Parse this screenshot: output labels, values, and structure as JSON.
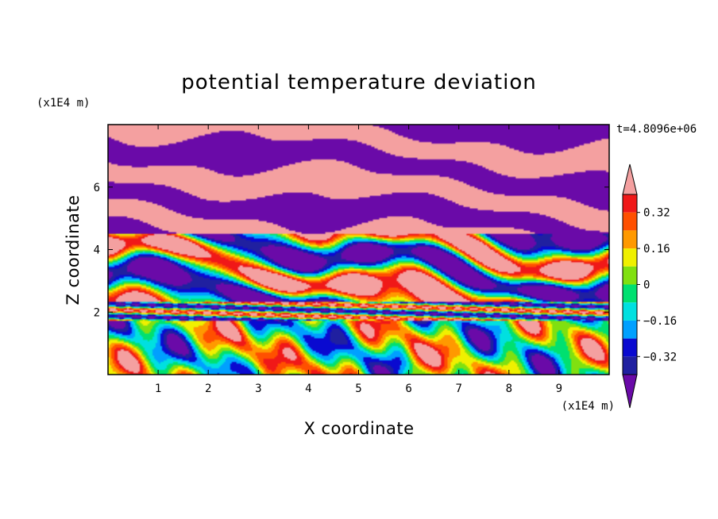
{
  "chart_data": {
    "type": "heatmap",
    "title": "potential temperature deviation",
    "xlabel": "X coordinate",
    "ylabel": "Z coordinate",
    "x_unit": "(x1E4 m)",
    "y_unit": "(x1E4 m)",
    "time_label": "t=4.8096e+06",
    "xlim": [
      0,
      10
    ],
    "ylim": [
      0,
      8
    ],
    "x_ticks": [
      "1",
      "2",
      "3",
      "4",
      "5",
      "6",
      "7",
      "8",
      "9"
    ],
    "y_ticks": [
      "2",
      "4",
      "6"
    ],
    "colorbar": {
      "levels": [
        -0.4,
        -0.32,
        -0.24,
        -0.16,
        -0.08,
        0,
        0.08,
        0.16,
        0.24,
        0.32,
        0.4
      ],
      "labels": [
        "0.32",
        "0.16",
        "0",
        "−0.16",
        "−0.32"
      ],
      "colors": [
        "#6a0aa8",
        "#2020a0",
        "#0a0ad0",
        "#00a0ff",
        "#00e0e0",
        "#00e070",
        "#80e010",
        "#f0f000",
        "#ff9900",
        "#ff5000",
        "#f01818",
        "#f4a0a0"
      ],
      "extend": "both"
    }
  }
}
